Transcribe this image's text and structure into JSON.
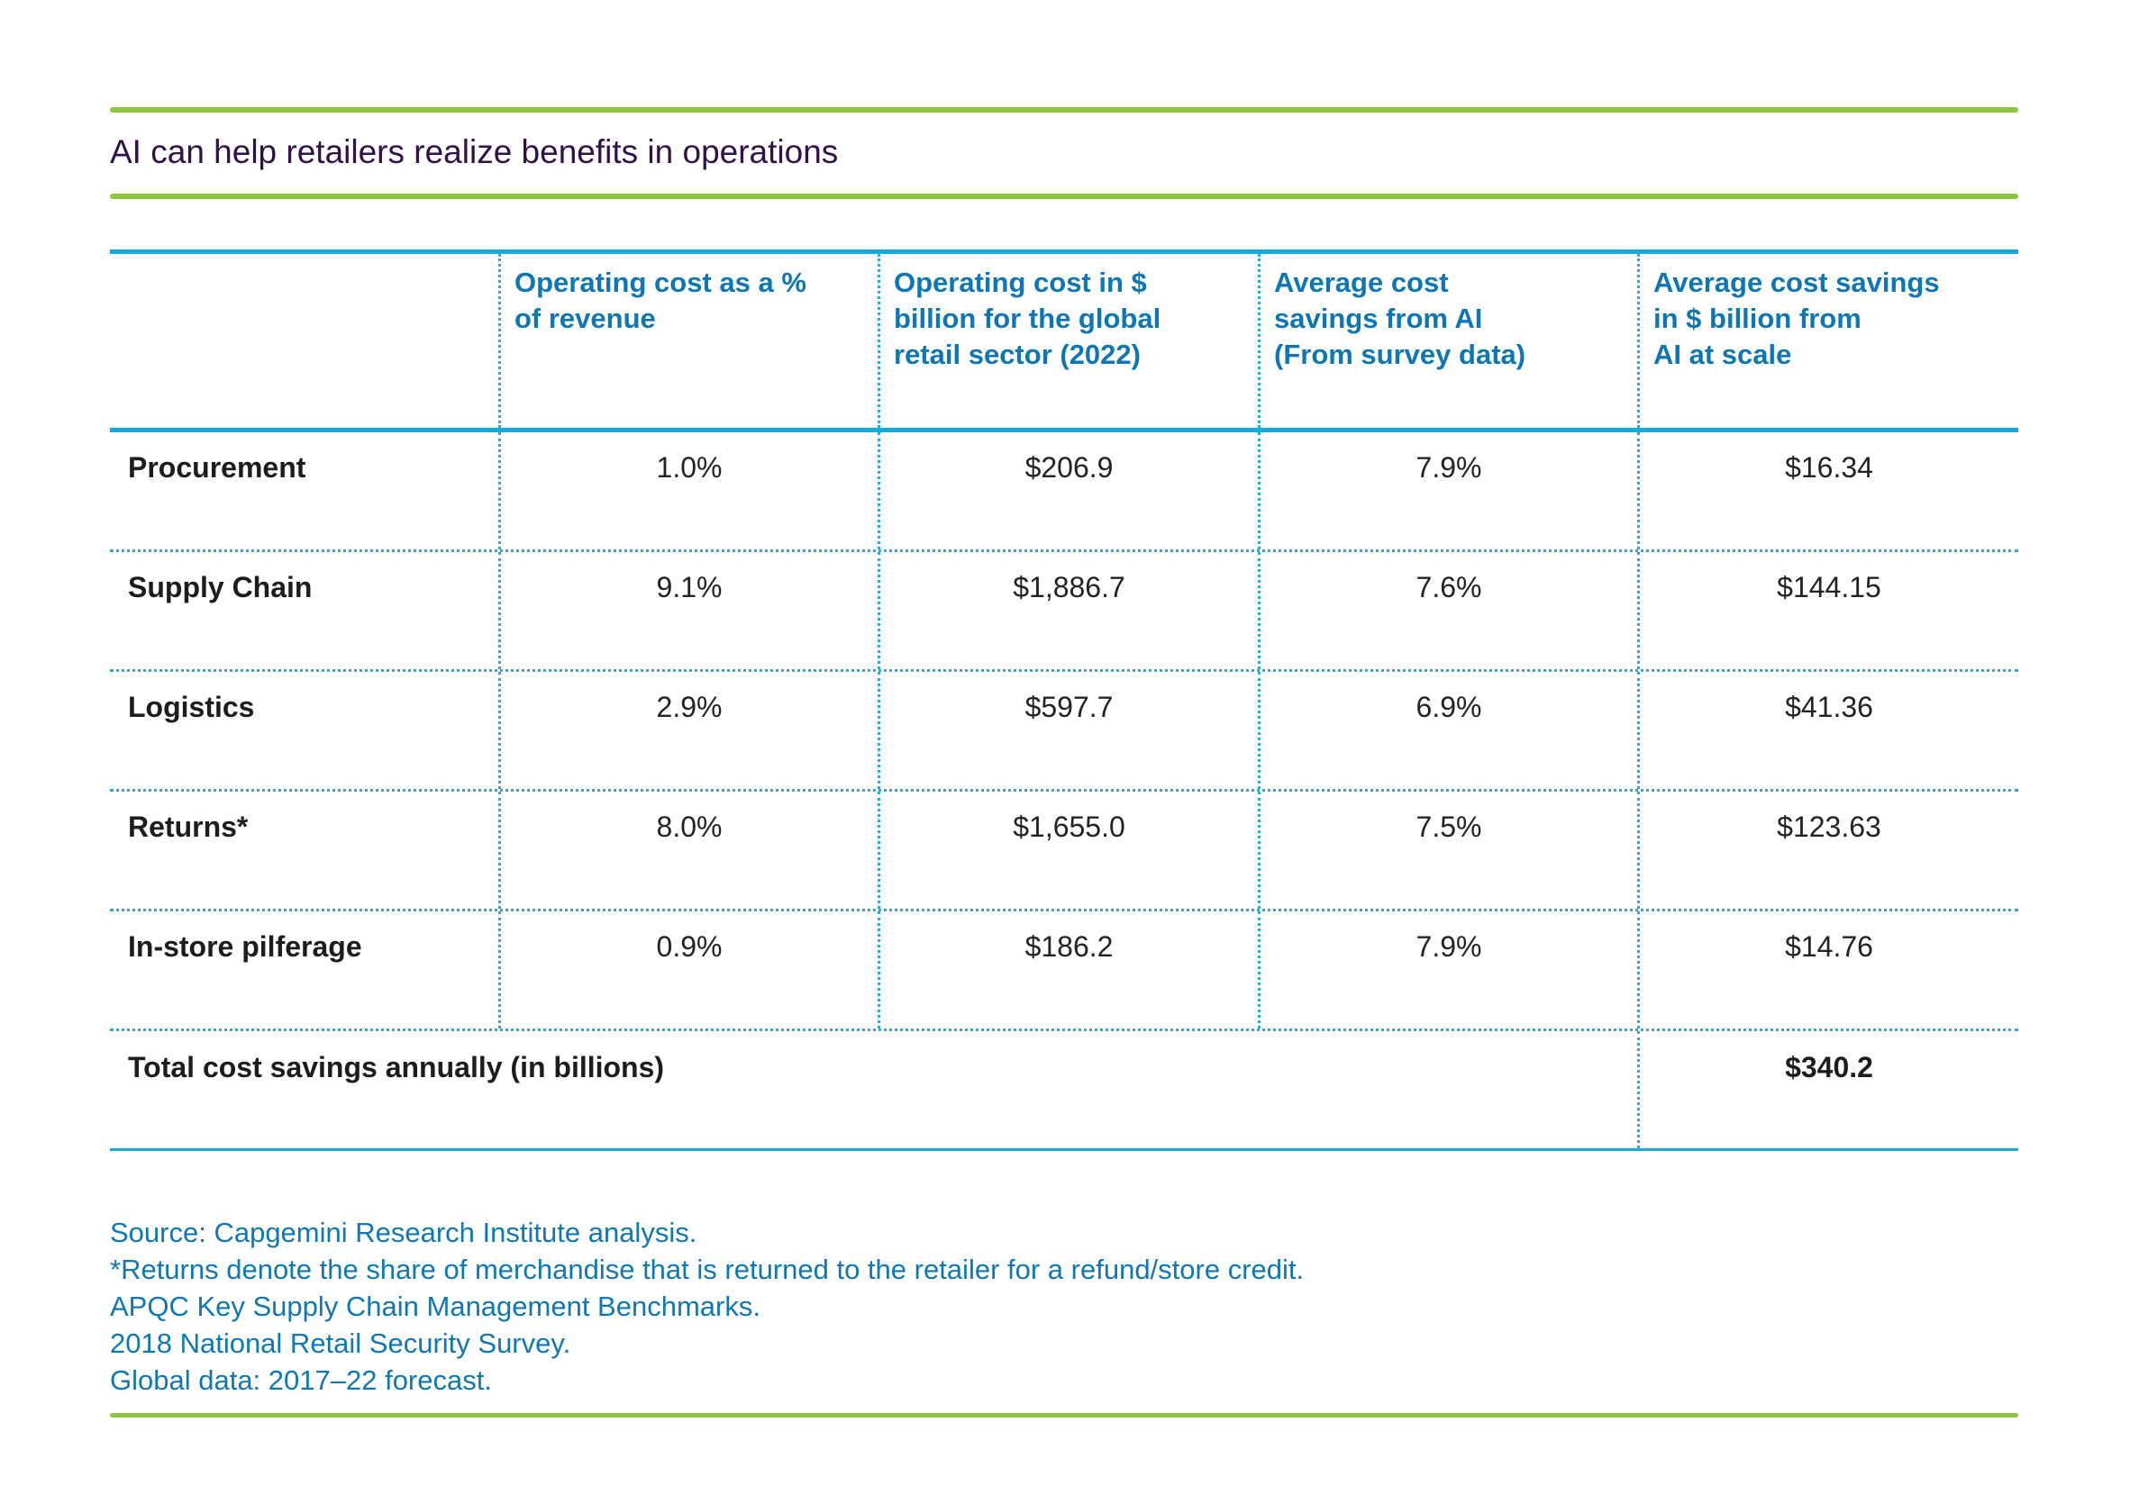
{
  "title": "AI can help retailers realize benefits in operations",
  "colors": {
    "accent_green": "#8cc63e",
    "title_purple": "#301148",
    "table_line_blue": "#12abdb",
    "dotted_blue": "#29abe2",
    "header_text_blue": "#0e76b4",
    "footnote_blue": "#0f78b4",
    "body_text": "#1d1d1b"
  },
  "table": {
    "headers": [
      "Operating cost as a %\nof revenue",
      "Operating cost in $\nbillion for the global\nretail sector (2022)",
      "Average cost\nsavings from AI\n(From survey data)",
      "Average cost savings\nin $ billion from\nAI at scale"
    ],
    "rows": [
      {
        "label": "Procurement",
        "values": [
          "1.0%",
          "$206.9",
          "7.9%",
          "$16.34"
        ]
      },
      {
        "label": "Supply Chain",
        "values": [
          "9.1%",
          "$1,886.7",
          "7.6%",
          "$144.15"
        ]
      },
      {
        "label": "Logistics",
        "values": [
          "2.9%",
          "$597.7",
          "6.9%",
          "$41.36"
        ]
      },
      {
        "label": "Returns*",
        "values": [
          "8.0%",
          "$1,655.0",
          "7.5%",
          "$123.63"
        ]
      },
      {
        "label": "In-store pilferage",
        "values": [
          "0.9%",
          "$186.2",
          "7.9%",
          "$14.76"
        ]
      }
    ],
    "total": {
      "label": "Total cost savings annually (in billions)",
      "value": "$340.2"
    }
  },
  "footnotes": [
    "Source: Capgemini Research Institute analysis.",
    "*Returns denote the share of merchandise that is returned to the retailer for a refund/store credit.",
    "APQC Key Supply Chain Management Benchmarks.",
    "2018 National Retail Security Survey.",
    "Global data: 2017–22 forecast."
  ]
}
